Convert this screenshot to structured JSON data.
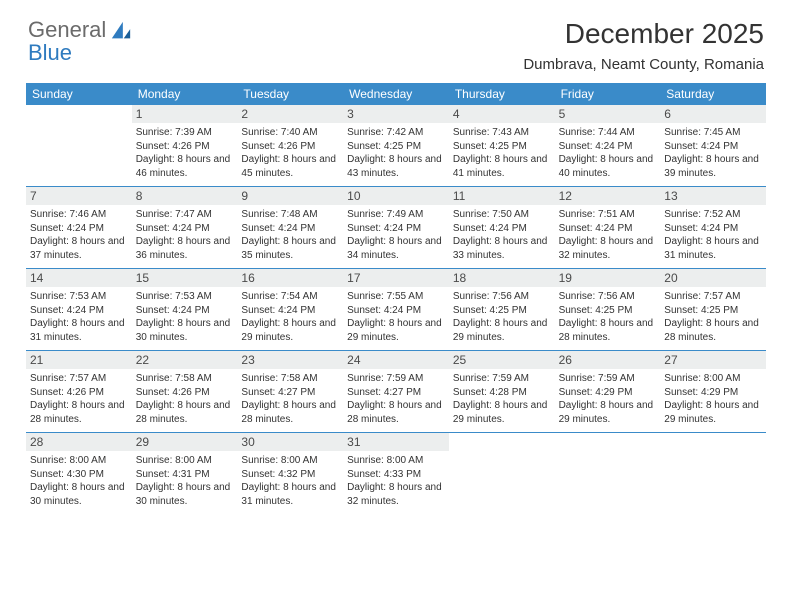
{
  "brand": {
    "name_top": "General",
    "name_bottom": "Blue"
  },
  "title": "December 2025",
  "location": "Dumbrava, Neamt County, Romania",
  "header_bg": "#3a8bc9",
  "weekdays": [
    "Sunday",
    "Monday",
    "Tuesday",
    "Wednesday",
    "Thursday",
    "Friday",
    "Saturday"
  ],
  "weeks": [
    [
      {
        "num": "",
        "sunrise": "",
        "sunset": "",
        "daylight": ""
      },
      {
        "num": "1",
        "sunrise": "Sunrise: 7:39 AM",
        "sunset": "Sunset: 4:26 PM",
        "daylight": "Daylight: 8 hours and 46 minutes."
      },
      {
        "num": "2",
        "sunrise": "Sunrise: 7:40 AM",
        "sunset": "Sunset: 4:26 PM",
        "daylight": "Daylight: 8 hours and 45 minutes."
      },
      {
        "num": "3",
        "sunrise": "Sunrise: 7:42 AM",
        "sunset": "Sunset: 4:25 PM",
        "daylight": "Daylight: 8 hours and 43 minutes."
      },
      {
        "num": "4",
        "sunrise": "Sunrise: 7:43 AM",
        "sunset": "Sunset: 4:25 PM",
        "daylight": "Daylight: 8 hours and 41 minutes."
      },
      {
        "num": "5",
        "sunrise": "Sunrise: 7:44 AM",
        "sunset": "Sunset: 4:24 PM",
        "daylight": "Daylight: 8 hours and 40 minutes."
      },
      {
        "num": "6",
        "sunrise": "Sunrise: 7:45 AM",
        "sunset": "Sunset: 4:24 PM",
        "daylight": "Daylight: 8 hours and 39 minutes."
      }
    ],
    [
      {
        "num": "7",
        "sunrise": "Sunrise: 7:46 AM",
        "sunset": "Sunset: 4:24 PM",
        "daylight": "Daylight: 8 hours and 37 minutes."
      },
      {
        "num": "8",
        "sunrise": "Sunrise: 7:47 AM",
        "sunset": "Sunset: 4:24 PM",
        "daylight": "Daylight: 8 hours and 36 minutes."
      },
      {
        "num": "9",
        "sunrise": "Sunrise: 7:48 AM",
        "sunset": "Sunset: 4:24 PM",
        "daylight": "Daylight: 8 hours and 35 minutes."
      },
      {
        "num": "10",
        "sunrise": "Sunrise: 7:49 AM",
        "sunset": "Sunset: 4:24 PM",
        "daylight": "Daylight: 8 hours and 34 minutes."
      },
      {
        "num": "11",
        "sunrise": "Sunrise: 7:50 AM",
        "sunset": "Sunset: 4:24 PM",
        "daylight": "Daylight: 8 hours and 33 minutes."
      },
      {
        "num": "12",
        "sunrise": "Sunrise: 7:51 AM",
        "sunset": "Sunset: 4:24 PM",
        "daylight": "Daylight: 8 hours and 32 minutes."
      },
      {
        "num": "13",
        "sunrise": "Sunrise: 7:52 AM",
        "sunset": "Sunset: 4:24 PM",
        "daylight": "Daylight: 8 hours and 31 minutes."
      }
    ],
    [
      {
        "num": "14",
        "sunrise": "Sunrise: 7:53 AM",
        "sunset": "Sunset: 4:24 PM",
        "daylight": "Daylight: 8 hours and 31 minutes."
      },
      {
        "num": "15",
        "sunrise": "Sunrise: 7:53 AM",
        "sunset": "Sunset: 4:24 PM",
        "daylight": "Daylight: 8 hours and 30 minutes."
      },
      {
        "num": "16",
        "sunrise": "Sunrise: 7:54 AM",
        "sunset": "Sunset: 4:24 PM",
        "daylight": "Daylight: 8 hours and 29 minutes."
      },
      {
        "num": "17",
        "sunrise": "Sunrise: 7:55 AM",
        "sunset": "Sunset: 4:24 PM",
        "daylight": "Daylight: 8 hours and 29 minutes."
      },
      {
        "num": "18",
        "sunrise": "Sunrise: 7:56 AM",
        "sunset": "Sunset: 4:25 PM",
        "daylight": "Daylight: 8 hours and 29 minutes."
      },
      {
        "num": "19",
        "sunrise": "Sunrise: 7:56 AM",
        "sunset": "Sunset: 4:25 PM",
        "daylight": "Daylight: 8 hours and 28 minutes."
      },
      {
        "num": "20",
        "sunrise": "Sunrise: 7:57 AM",
        "sunset": "Sunset: 4:25 PM",
        "daylight": "Daylight: 8 hours and 28 minutes."
      }
    ],
    [
      {
        "num": "21",
        "sunrise": "Sunrise: 7:57 AM",
        "sunset": "Sunset: 4:26 PM",
        "daylight": "Daylight: 8 hours and 28 minutes."
      },
      {
        "num": "22",
        "sunrise": "Sunrise: 7:58 AM",
        "sunset": "Sunset: 4:26 PM",
        "daylight": "Daylight: 8 hours and 28 minutes."
      },
      {
        "num": "23",
        "sunrise": "Sunrise: 7:58 AM",
        "sunset": "Sunset: 4:27 PM",
        "daylight": "Daylight: 8 hours and 28 minutes."
      },
      {
        "num": "24",
        "sunrise": "Sunrise: 7:59 AM",
        "sunset": "Sunset: 4:27 PM",
        "daylight": "Daylight: 8 hours and 28 minutes."
      },
      {
        "num": "25",
        "sunrise": "Sunrise: 7:59 AM",
        "sunset": "Sunset: 4:28 PM",
        "daylight": "Daylight: 8 hours and 29 minutes."
      },
      {
        "num": "26",
        "sunrise": "Sunrise: 7:59 AM",
        "sunset": "Sunset: 4:29 PM",
        "daylight": "Daylight: 8 hours and 29 minutes."
      },
      {
        "num": "27",
        "sunrise": "Sunrise: 8:00 AM",
        "sunset": "Sunset: 4:29 PM",
        "daylight": "Daylight: 8 hours and 29 minutes."
      }
    ],
    [
      {
        "num": "28",
        "sunrise": "Sunrise: 8:00 AM",
        "sunset": "Sunset: 4:30 PM",
        "daylight": "Daylight: 8 hours and 30 minutes."
      },
      {
        "num": "29",
        "sunrise": "Sunrise: 8:00 AM",
        "sunset": "Sunset: 4:31 PM",
        "daylight": "Daylight: 8 hours and 30 minutes."
      },
      {
        "num": "30",
        "sunrise": "Sunrise: 8:00 AM",
        "sunset": "Sunset: 4:32 PM",
        "daylight": "Daylight: 8 hours and 31 minutes."
      },
      {
        "num": "31",
        "sunrise": "Sunrise: 8:00 AM",
        "sunset": "Sunset: 4:33 PM",
        "daylight": "Daylight: 8 hours and 32 minutes."
      },
      {
        "num": "",
        "sunrise": "",
        "sunset": "",
        "daylight": ""
      },
      {
        "num": "",
        "sunrise": "",
        "sunset": "",
        "daylight": ""
      },
      {
        "num": "",
        "sunrise": "",
        "sunset": "",
        "daylight": ""
      }
    ]
  ]
}
